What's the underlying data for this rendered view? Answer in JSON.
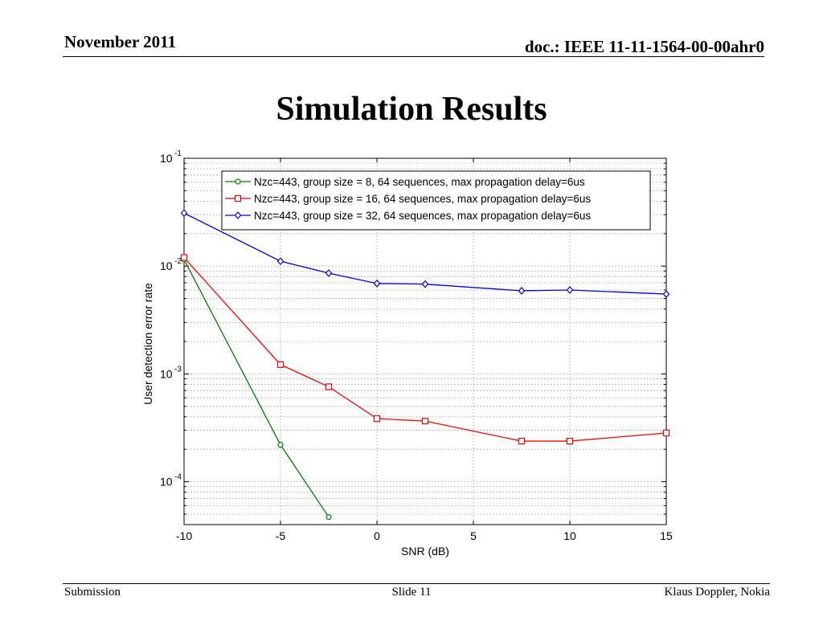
{
  "header": {
    "date": "November 2011",
    "doc": "doc.: IEEE 11-11-1564-00-00ahr0"
  },
  "title": "Simulation Results",
  "footer": {
    "left": "Submission",
    "center": "Slide 11",
    "right": "Klaus Doppler, Nokia"
  },
  "colors": {
    "green": "#008000",
    "red": "#ff0000",
    "blue": "#0000ff"
  },
  "chart_data": {
    "type": "line",
    "xlabel": "SNR (dB)",
    "ylabel": "User detection error rate",
    "xlim": [
      -10,
      15
    ],
    "xticks": [
      -10,
      -5,
      0,
      5,
      10,
      15
    ],
    "ylim": [
      4e-05,
      0.1
    ],
    "yscale": "log",
    "yticks": [
      {
        "value": 0.1,
        "base": "10",
        "exp": "-1"
      },
      {
        "value": 0.01,
        "base": "10",
        "exp": "-2"
      },
      {
        "value": 0.001,
        "base": "10",
        "exp": "-3"
      },
      {
        "value": 0.0001,
        "base": "10",
        "exp": "-4"
      }
    ],
    "grid": true,
    "legend_position": "top-right",
    "series": [
      {
        "name": "Nzc=443, group size = 8, 64 sequences, max propagation delay=6us",
        "color": "#008000",
        "marker": "circle",
        "x": [
          -10,
          -5,
          -2.5
        ],
        "y": [
          0.0115,
          0.00022,
          4.7e-05
        ]
      },
      {
        "name": "Nzc=443, group size = 16, 64 sequences, max propagation delay=6us",
        "color": "#ff0000",
        "marker": "square",
        "x": [
          -10,
          -5,
          -2.5,
          0,
          2.5,
          7.5,
          10,
          15
        ],
        "y": [
          0.012,
          0.00122,
          0.00076,
          0.000385,
          0.000365,
          0.000238,
          0.000238,
          0.000283
        ]
      },
      {
        "name": "Nzc=443, group size = 32, 64 sequences, max propagation delay=6us",
        "color": "#0000ff",
        "marker": "diamond",
        "x": [
          -10,
          -5,
          -2.5,
          0,
          2.5,
          7.5,
          10,
          15
        ],
        "y": [
          0.031,
          0.0111,
          0.0086,
          0.0069,
          0.0068,
          0.0059,
          0.006,
          0.0055
        ]
      }
    ]
  }
}
